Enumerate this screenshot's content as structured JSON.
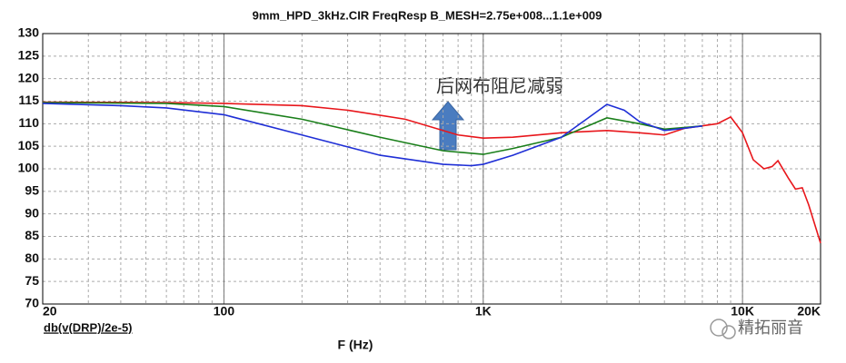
{
  "chart_data": {
    "type": "line",
    "title": "9mm_HPD_3kHz.CIR FreqResp B_MESH=2.75e+008...1.1e+009",
    "x_label": "F (Hz)",
    "trace_label": "db(v(DRP)/2e-5)",
    "annotation": "后网布阻尼减弱",
    "watermark": "精拓丽音",
    "x_scale": "log",
    "grid": true,
    "xlim": [
      20,
      20000
    ],
    "xticks": [
      20,
      100,
      {
        "value": 1000,
        "label": "1K"
      },
      {
        "value": 10000,
        "label": "10K"
      },
      {
        "value": 20000,
        "label": "20K"
      }
    ],
    "ylim": [
      70,
      130
    ],
    "yticks": [
      70,
      75,
      80,
      85,
      90,
      95,
      100,
      105,
      110,
      115,
      120,
      125,
      130
    ],
    "series": [
      {
        "color": "#e8161b",
        "x": [
          20,
          60,
          100,
          200,
          300,
          500,
          800,
          1000,
          1300,
          2000,
          3000,
          4000,
          5000,
          6000,
          8000,
          9000,
          10000,
          11000,
          12100,
          13000,
          13700,
          15000,
          16000,
          17000,
          18000,
          20000
        ],
        "values": [
          114.8,
          114.7,
          114.5,
          114,
          113,
          111,
          107.5,
          106.8,
          107,
          108,
          108.5,
          108,
          107.5,
          109,
          110,
          111.5,
          108,
          102,
          100,
          100.5,
          101.8,
          98,
          95.5,
          95.8,
          92,
          83.5
        ]
      },
      {
        "color": "#1a7f1a",
        "x": [
          20,
          60,
          100,
          200,
          400,
          700,
          1000,
          1300,
          2000,
          3000,
          4000,
          5000,
          7000
        ],
        "values": [
          114.7,
          114.5,
          113.8,
          111,
          107,
          104,
          103.2,
          104.5,
          107,
          111.3,
          110,
          108.8,
          109.5
        ]
      },
      {
        "color": "#1f2fd6",
        "x": [
          20,
          40,
          60,
          100,
          200,
          400,
          700,
          900,
          1000,
          1300,
          2000,
          2500,
          3000,
          3500,
          4000,
          5000,
          6000,
          7000
        ],
        "values": [
          114.5,
          114,
          113.5,
          112,
          107.5,
          103,
          101,
          100.7,
          101,
          103,
          107,
          111,
          114.3,
          113,
          110.5,
          108.5,
          109,
          109.5
        ]
      }
    ]
  }
}
